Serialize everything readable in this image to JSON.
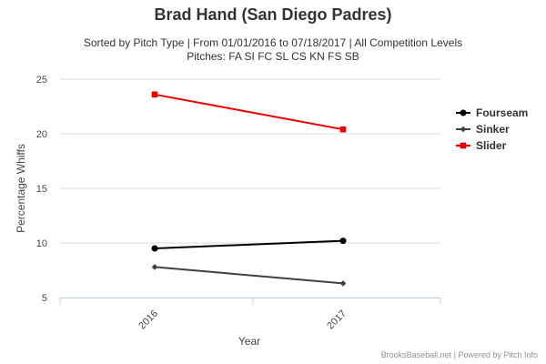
{
  "chart_data": {
    "type": "line",
    "title": "Brad Hand (San Diego Padres)",
    "subtitle_lines": [
      "Sorted by Pitch Type | From 01/01/2016 to 07/18/2017 | All Competition Levels",
      "Pitches: FA SI FC SL CS KN FS SB"
    ],
    "xlabel": "Year",
    "ylabel": "Percentage Whiffs",
    "categories": [
      "2016",
      "2017"
    ],
    "ylim": [
      5,
      25
    ],
    "yticks": [
      5,
      10,
      15,
      20,
      25
    ],
    "grid": true,
    "legend_position": "right",
    "series": [
      {
        "name": "Fourseam",
        "values": [
          9.5,
          10.2
        ],
        "color": "#000000",
        "marker": "circle"
      },
      {
        "name": "Sinker",
        "values": [
          7.8,
          6.3
        ],
        "color": "#404040",
        "marker": "diamond"
      },
      {
        "name": "Slider",
        "values": [
          23.6,
          20.4
        ],
        "color": "#ee0000",
        "marker": "square"
      }
    ]
  },
  "credit": "BrooksBaseball.net | Powered by Pitch Info"
}
